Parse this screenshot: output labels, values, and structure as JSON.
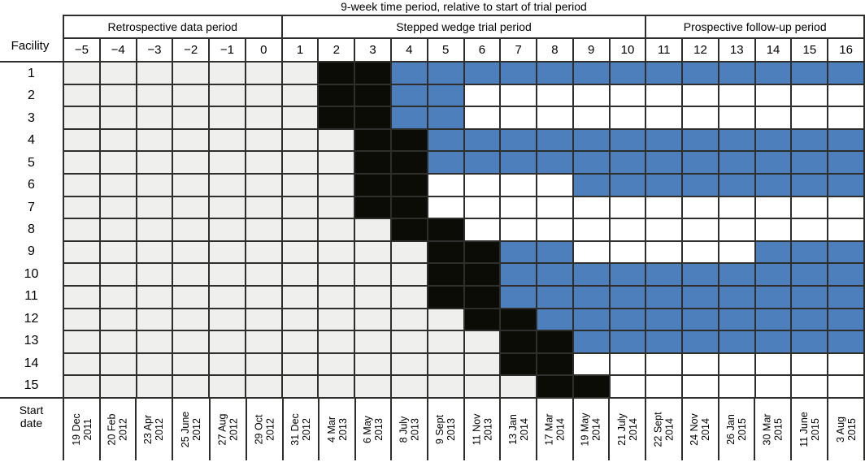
{
  "chart_data": {
    "type": "heatmap",
    "title": "9-week time period, relative to start of trial period",
    "row_header": "Facility",
    "row_labels": [
      "1",
      "2",
      "3",
      "4",
      "5",
      "6",
      "7",
      "8",
      "9",
      "10",
      "11",
      "12",
      "13",
      "14",
      "15"
    ],
    "column_groups": [
      {
        "label": "Retrospective data period",
        "span": 6
      },
      {
        "label": "Stepped wedge trial period",
        "span": 10
      },
      {
        "label": "Prospective follow-up period",
        "span": 6
      }
    ],
    "columns": [
      "−5",
      "−4",
      "−3",
      "−2",
      "−1",
      "0",
      "1",
      "2",
      "3",
      "4",
      "5",
      "6",
      "7",
      "8",
      "9",
      "10",
      "11",
      "12",
      "13",
      "14",
      "15",
      "16"
    ],
    "cell_states": [
      "eeeeeeekkbbbbbbbbbbbbb",
      "eeeeeeekkbbwwwwwwwwwww",
      "eeeeeeekkbbwwwwwwwwwww",
      "eeeeeeeekkbbbbbbbbbbbb",
      "eeeeeeeekkbbbbbbbbbbbb",
      "eeeeeeeekkwwwwbbbbbbbb",
      "eeeeeeeekkwwwwwwwwwwww",
      "eeeeeeeeekkwwwwwwwwwww",
      "eeeeeeeeeekkbbwwwwwbbb",
      "eeeeeeeeeekkbbbbbbbbbb",
      "eeeeeeeeeekkbbbbbbbbbb",
      "eeeeeeeeeeekkbbbbbbbbb",
      "eeeeeeeeeeeekkbbbbbbbb",
      "eeeeeeeeeeeekkwwwwwwww",
      "eeeeeeeeeeeeekkwwwwwww"
    ],
    "state_legend": {
      "e": "light-grey cell",
      "k": "black cell",
      "b": "blue cell",
      "w": "white cell"
    },
    "colors": {
      "e": "#efefee",
      "k": "#0c0c06",
      "b": "#4d7fbd",
      "w": "#ffffff",
      "grid_line": "#2e2e2c"
    },
    "start_date_header_lines": [
      "Start",
      "date"
    ],
    "start_dates": [
      [
        "19 Dec",
        "2011"
      ],
      [
        "20 Feb",
        "2012"
      ],
      [
        "23 Apr",
        "2012"
      ],
      [
        "25 June",
        "2012"
      ],
      [
        "27 Aug",
        "2012"
      ],
      [
        "29 Oct",
        "2012"
      ],
      [
        "31 Dec",
        "2012"
      ],
      [
        "4 Mar",
        "2013"
      ],
      [
        "6 May",
        "2013"
      ],
      [
        "8 July",
        "2013"
      ],
      [
        "9 Sept",
        "2013"
      ],
      [
        "11 Nov",
        "2013"
      ],
      [
        "13 Jan",
        "2014"
      ],
      [
        "17 Mar",
        "2014"
      ],
      [
        "19 May",
        "2014"
      ],
      [
        "21 July",
        "2014"
      ],
      [
        "22 Sept",
        "2014"
      ],
      [
        "24 Nov",
        "2014"
      ],
      [
        "26 Jan",
        "2015"
      ],
      [
        "30 Mar",
        "2015"
      ],
      [
        "11 June",
        "2015"
      ],
      [
        "3 Aug",
        "2015"
      ]
    ]
  }
}
